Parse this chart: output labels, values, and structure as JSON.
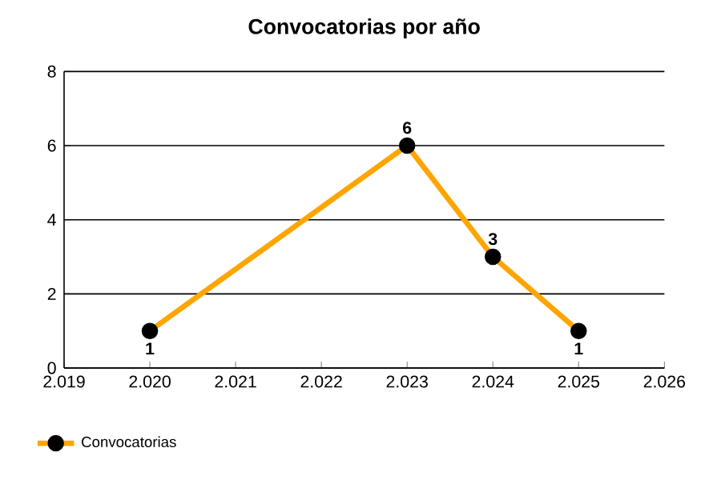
{
  "chart_data": {
    "type": "line",
    "title": "Convocatorias por año",
    "x": [
      2020,
      2023,
      2024,
      2025
    ],
    "series": [
      {
        "name": "Convocatorias",
        "color": "#ffa500",
        "values": [
          1,
          6,
          3,
          1
        ]
      }
    ],
    "xlim": [
      2019,
      2026
    ],
    "xticks": [
      {
        "value": 2019,
        "label": "2.019"
      },
      {
        "value": 2020,
        "label": "2.020"
      },
      {
        "value": 2021,
        "label": "2.021"
      },
      {
        "value": 2022,
        "label": "2.022"
      },
      {
        "value": 2023,
        "label": "2.023"
      },
      {
        "value": 2024,
        "label": "2.024"
      },
      {
        "value": 2025,
        "label": "2.025"
      },
      {
        "value": 2026,
        "label": "2.026"
      }
    ],
    "ylim": [
      0,
      8
    ],
    "yticks": [
      0,
      2,
      4,
      6,
      8
    ],
    "grid": "y",
    "legend": "bottom left",
    "marker": "circle",
    "line_style": "solid",
    "data_labels": true
  }
}
